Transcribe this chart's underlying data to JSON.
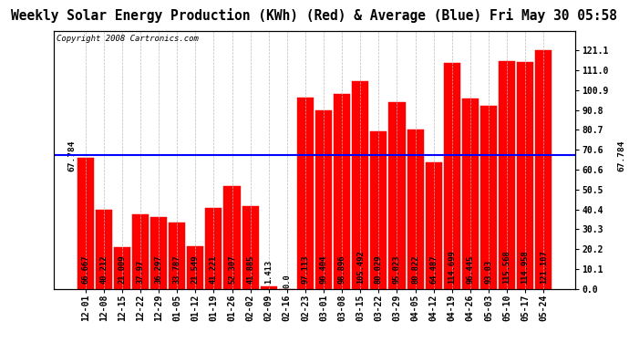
{
  "title": "Weekly Solar Energy Production (KWh) (Red) & Average (Blue) Fri May 30 05:58",
  "copyright": "Copyright 2008 Cartronics.com",
  "categories": [
    "12-01",
    "12-08",
    "12-15",
    "12-22",
    "12-29",
    "01-05",
    "01-12",
    "01-19",
    "01-26",
    "02-02",
    "02-09",
    "02-16",
    "02-23",
    "03-01",
    "03-08",
    "03-15",
    "03-22",
    "03-29",
    "04-05",
    "04-12",
    "04-19",
    "04-26",
    "05-03",
    "05-10",
    "05-17",
    "05-24"
  ],
  "values": [
    66.667,
    40.212,
    21.009,
    37.97,
    36.297,
    33.787,
    21.549,
    41.221,
    52.307,
    41.885,
    1.413,
    0.0,
    97.113,
    90.404,
    98.896,
    105.492,
    80.029,
    95.023,
    80.822,
    64.487,
    114.699,
    96.445,
    93.03,
    115.568,
    114.958,
    121.107
  ],
  "average": 67.784,
  "bar_color": "#FF0000",
  "avg_line_color": "#0000FF",
  "background_color": "#FFFFFF",
  "plot_bg_color": "#FFFFFF",
  "grid_color": "#BBBBBB",
  "ymax": 131.0,
  "yticks_right": [
    0.0,
    10.1,
    20.2,
    30.3,
    40.4,
    50.5,
    60.6,
    70.6,
    80.7,
    90.8,
    100.9,
    111.0,
    121.1
  ],
  "avg_label": "67.784",
  "title_fontsize": 10.5,
  "tick_fontsize": 7.0,
  "bar_value_fontsize": 6.2,
  "copyright_fontsize": 6.5
}
